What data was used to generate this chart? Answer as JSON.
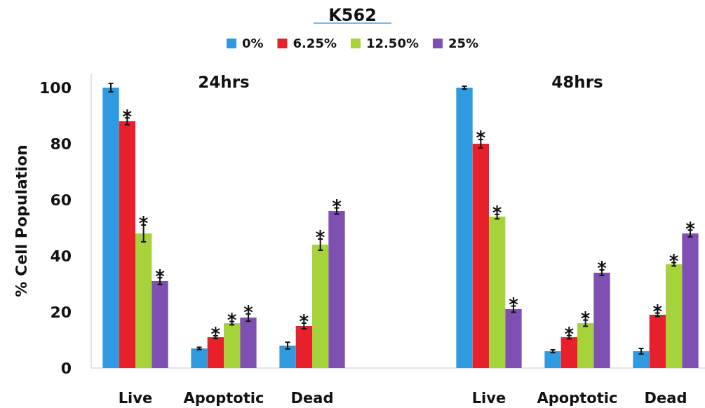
{
  "chart_data": {
    "type": "bar",
    "title": "K562",
    "ylabel": "% Cell Population",
    "categories": [
      "Live",
      "Apoptotic",
      "Dead",
      null,
      "Live",
      "Apoptotic",
      "Dead"
    ],
    "series": [
      {
        "name": "0%",
        "color": "#2f9ae0",
        "values": [
          100,
          7,
          8,
          null,
          100,
          6,
          6
        ],
        "errors": [
          1.5,
          0.4,
          1.2,
          null,
          0.5,
          0.5,
          1
        ]
      },
      {
        "name": "6.25%",
        "color": "#e8202c",
        "values": [
          88,
          11,
          15,
          null,
          80,
          11,
          19
        ],
        "errors": [
          1.2,
          0.5,
          1,
          null,
          1.5,
          0.6,
          0.6
        ],
        "value_labels": [
          "*",
          "*",
          "*",
          null,
          "*",
          "*",
          "*"
        ]
      },
      {
        "name": "12.50%",
        "color": "#a6d23a",
        "values": [
          48,
          16,
          44,
          null,
          54,
          16,
          37
        ],
        "errors": [
          3,
          0.6,
          2,
          null,
          0.8,
          1.1,
          0.6
        ],
        "value_labels": [
          "*",
          "*",
          "*",
          null,
          "*",
          "*",
          "*"
        ]
      },
      {
        "name": "25%",
        "color": "#7d50b2",
        "values": [
          31,
          18,
          56,
          null,
          21,
          34,
          48
        ],
        "errors": [
          1.2,
          1.3,
          1.1,
          null,
          1.1,
          1,
          1.2
        ],
        "value_labels": [
          "*",
          "*",
          "*",
          null,
          "*",
          "*",
          "*"
        ]
      }
    ],
    "ylim": [
      0,
      105
    ],
    "yticks": [
      0,
      20,
      40,
      60,
      80,
      100
    ],
    "legend": "top",
    "annotations": [
      "24hrs",
      "48hrs"
    ]
  }
}
